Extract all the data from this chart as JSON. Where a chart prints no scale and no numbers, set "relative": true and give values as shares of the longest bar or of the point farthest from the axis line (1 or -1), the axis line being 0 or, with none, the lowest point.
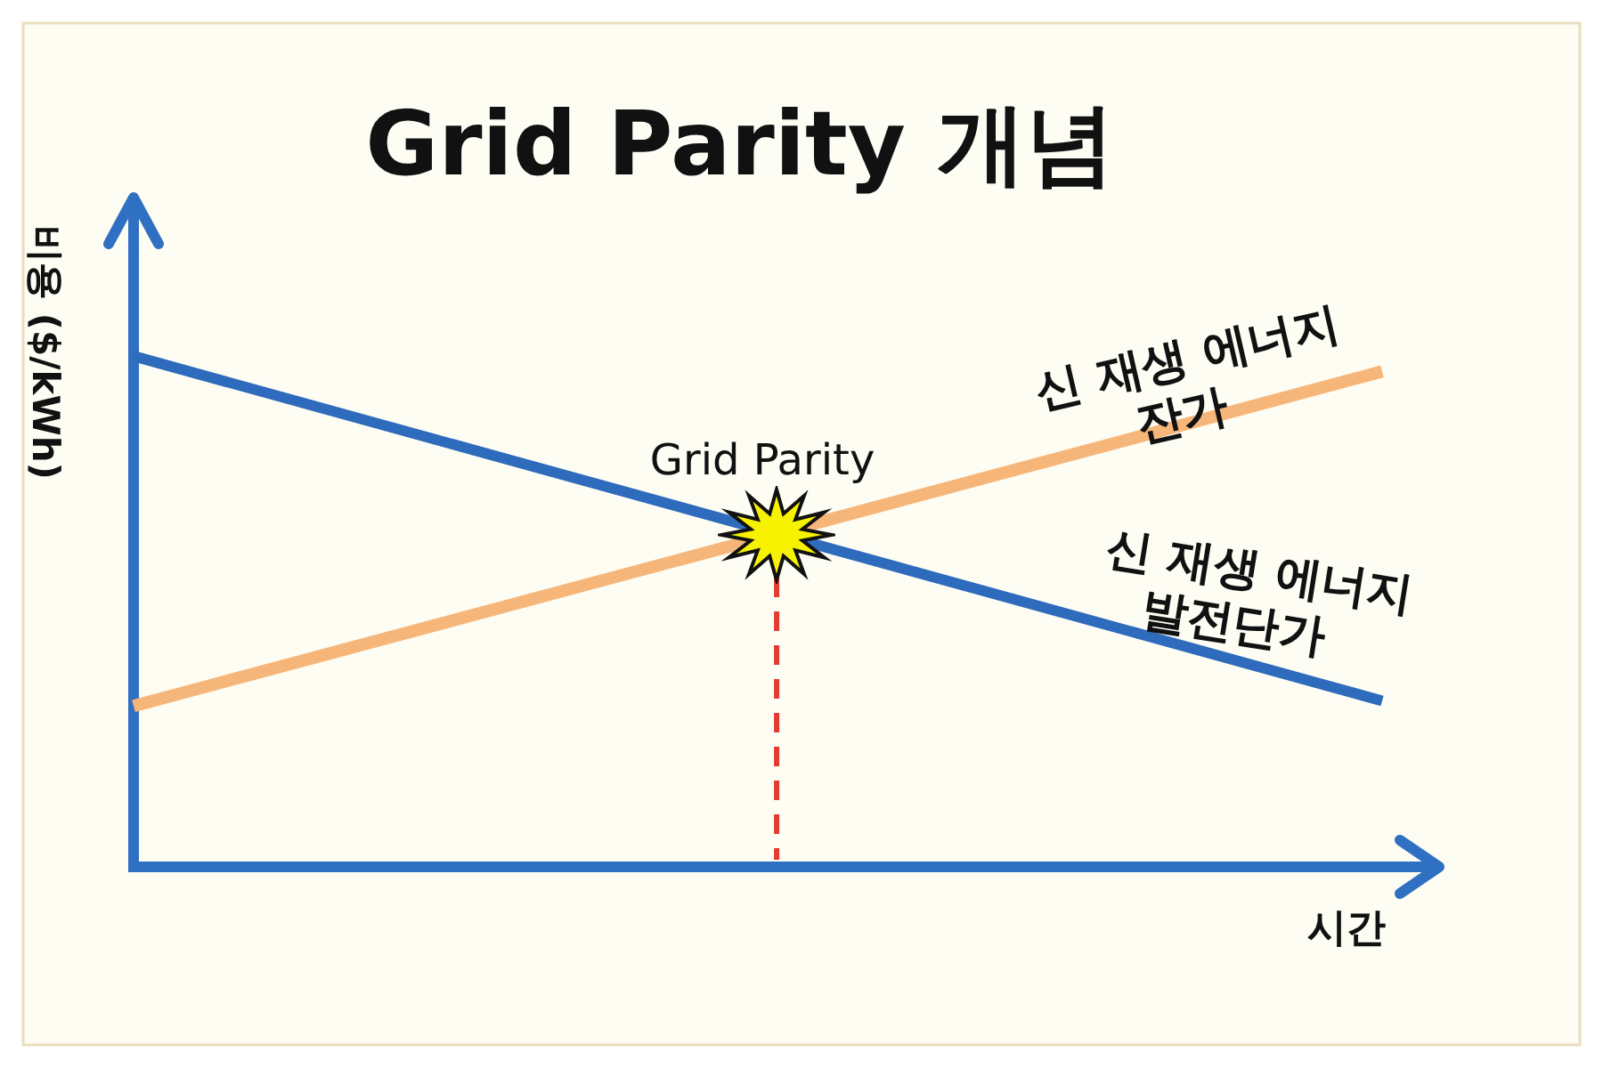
{
  "chart_data": {
    "type": "line",
    "title": "Grid Parity 개념",
    "xlabel": "시간",
    "ylabel": "비용 ($/kWh)",
    "categories": [
      null,
      null
    ],
    "relative": true,
    "tick_labels": false,
    "series": [
      {
        "name": "신 재생 에너지 발전단가",
        "color": "#2e6bbd",
        "values": [
          1,
          0.325
        ]
      },
      {
        "name": "신 재생 에너지 잔가",
        "color": "#f7b679",
        "values": [
          0.315,
          0.97
        ]
      }
    ],
    "annotations": [
      {
        "text": "Grid Parity",
        "y": 0.65
      }
    ]
  }
}
